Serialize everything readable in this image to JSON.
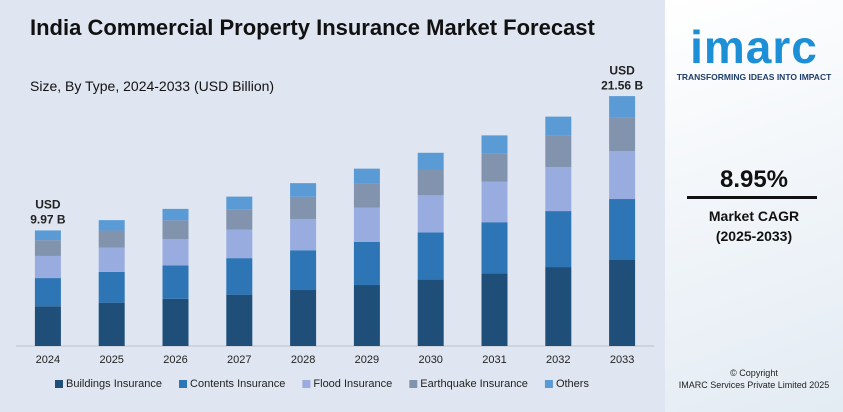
{
  "chart_data": {
    "type": "stacked_bar",
    "title": "India Commercial Property Insurance Market Forecast",
    "subtitle": "Size, By Type, 2024-2033 (USD Billion)",
    "categories": [
      "2024",
      "2025",
      "2026",
      "2027",
      "2028",
      "2029",
      "2030",
      "2031",
      "2032",
      "2033"
    ],
    "series": [
      {
        "name": "Buildings Insurance",
        "color": "#1f4e79",
        "values": [
          3.43,
          3.74,
          4.07,
          4.43,
          4.83,
          5.26,
          5.73,
          6.25,
          6.81,
          7.42
        ]
      },
      {
        "name": "Contents Insurance",
        "color": "#2e75b6",
        "values": [
          2.43,
          2.65,
          2.89,
          3.15,
          3.43,
          3.73,
          4.07,
          4.43,
          4.83,
          5.26
        ]
      },
      {
        "name": "Flood Insurance",
        "color": "#98ace0",
        "values": [
          1.91,
          2.09,
          2.27,
          2.47,
          2.7,
          2.94,
          3.2,
          3.49,
          3.8,
          4.14
        ]
      },
      {
        "name": "Earthquake Insurance",
        "color": "#8193ad",
        "values": [
          1.36,
          1.48,
          1.61,
          1.75,
          1.91,
          2.08,
          2.27,
          2.47,
          2.69,
          2.93
        ]
      },
      {
        "name": "Others",
        "color": "#5b9bd5",
        "values": [
          0.84,
          0.9,
          0.99,
          1.09,
          1.18,
          1.29,
          1.4,
          1.53,
          1.66,
          1.81
        ]
      }
    ],
    "ylim": [
      0,
      22
    ],
    "annotations": [
      {
        "category": 0,
        "lines": [
          "USD",
          "9.97 B"
        ]
      },
      {
        "category": 9,
        "lines": [
          "USD",
          "21.56 B"
        ]
      }
    ]
  },
  "sidebar": {
    "logo": "imarc",
    "tagline": "TRANSFORMING IDEAS INTO IMPACT",
    "cagr": "8.95%",
    "cagr_label": "Market CAGR",
    "cagr_period": "(2025-2033)",
    "copyright": "© Copyright",
    "company": "IMARC Services Private Limited 2025"
  }
}
